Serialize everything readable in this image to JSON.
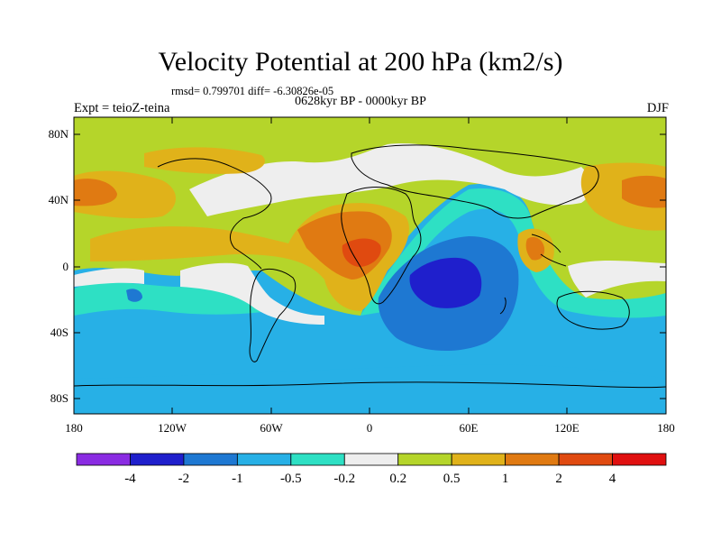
{
  "title": "Velocity Potential at 200 hPa (km2/s)",
  "stats": "rmsd= 0.799701 diff= -6.30826e-05",
  "period": "0628kyr BP - 0000kyr BP",
  "experiment": "Expt = teioZ-teina",
  "season": "DJF",
  "lat_labels": [
    "80N",
    "40N",
    "0",
    "40S",
    "80S"
  ],
  "lon_labels": [
    "180",
    "120W",
    "60W",
    "0",
    "60E",
    "120E",
    "180"
  ],
  "colorbar": {
    "labels": [
      "-4",
      "-2",
      "-1",
      "-0.5",
      "-0.2",
      "0.2",
      "0.5",
      "1",
      "2",
      "4"
    ],
    "colors": [
      "#8a2be2",
      "#1f1fcc",
      "#1e78d2",
      "#27b0e6",
      "#2ee0c4",
      "#eeeeee",
      "#b5d52a",
      "#e0b21a",
      "#e07a12",
      "#e04a10",
      "#e01010"
    ]
  },
  "icons": [
    "world-coastline-map"
  ]
}
